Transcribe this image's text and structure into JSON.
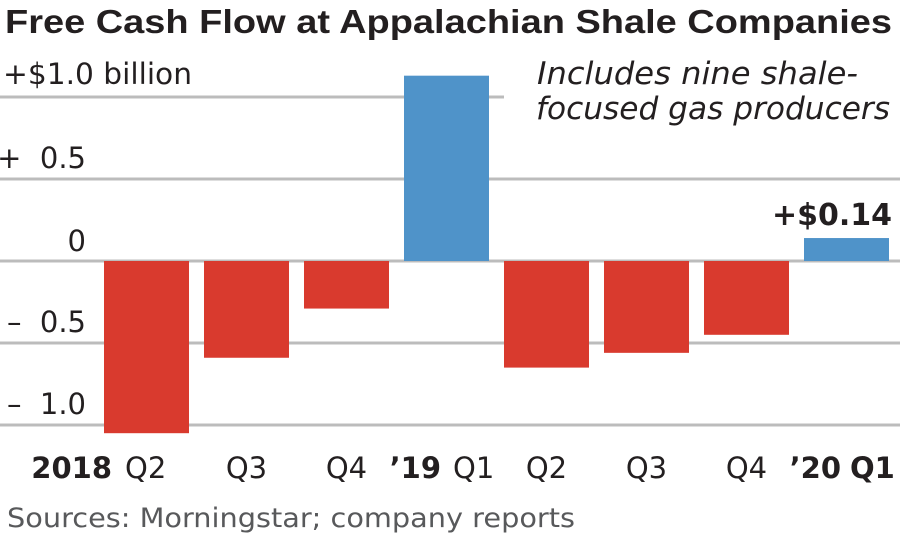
{
  "chart_data": {
    "type": "bar",
    "title": "Free Cash Flow at Appalachian Shale Companies",
    "annotation": [
      "Includes nine shale-",
      "focused gas producers"
    ],
    "unit_label": "+$1.0 billion",
    "yticks": [
      {
        "value": 1.0,
        "label": "+$1.0 billion"
      },
      {
        "value": 0.5,
        "label": "+  0.5"
      },
      {
        "value": 0,
        "label": "0"
      },
      {
        "value": -0.5,
        "label": "–  0.5"
      },
      {
        "value": -1.0,
        "label": "–  1.0"
      }
    ],
    "ylim": [
      -1.05,
      1.13
    ],
    "grid": true,
    "categories": [
      {
        "year": "2018",
        "quarter": "Q2"
      },
      {
        "year": "",
        "quarter": "Q3"
      },
      {
        "year": "",
        "quarter": "Q4"
      },
      {
        "year": "’19",
        "quarter": "Q1"
      },
      {
        "year": "",
        "quarter": "Q2"
      },
      {
        "year": "",
        "quarter": "Q3"
      },
      {
        "year": "",
        "quarter": "Q4"
      },
      {
        "year": "’20",
        "quarter": "Q1"
      }
    ],
    "values": [
      -1.05,
      -0.59,
      -0.29,
      1.13,
      -0.65,
      -0.56,
      -0.45,
      0.14
    ],
    "data_label": {
      "index": 7,
      "text": "+$0.14"
    },
    "xlabel": "",
    "ylabel": "",
    "source": "Sources: Morningstar; company reports",
    "colors": {
      "positive": "#4f93c9",
      "negative": "#d93a2e",
      "grid": "#bcbcbc",
      "text": "#231f20"
    }
  }
}
